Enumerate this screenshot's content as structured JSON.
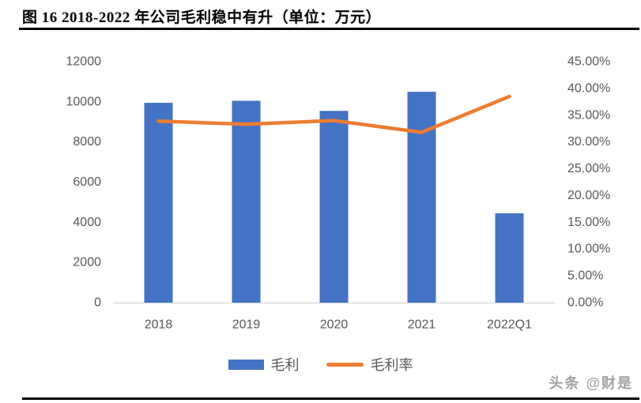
{
  "title": "图 16 2018-2022 年公司毛利稳中有升（单位：万元）",
  "watermark": "头条 @财是",
  "colors": {
    "bar": "#4472C4",
    "line": "#ED7D31",
    "axis_text": "#595959",
    "baseline": "#D9D9D9",
    "title_text": "#000000",
    "rule": "#000000",
    "watermark_text": "#a3a3a3"
  },
  "chart_data": {
    "type": "bar",
    "subtype": "bar+line combo, dual axis",
    "categories": [
      "2018",
      "2019",
      "2020",
      "2021",
      "2022Q1"
    ],
    "series": [
      {
        "name": "毛利",
        "type": "bar",
        "axis": "left",
        "values": [
          9950,
          10050,
          9550,
          10500,
          4450
        ]
      },
      {
        "name": "毛利率",
        "type": "line",
        "axis": "right",
        "values": [
          33.9,
          33.3,
          34.0,
          31.8,
          38.5
        ]
      }
    ],
    "left_axis": {
      "min": 0,
      "max": 12000,
      "step": 2000,
      "ticks": [
        "0",
        "2000",
        "4000",
        "6000",
        "8000",
        "10000",
        "12000"
      ]
    },
    "right_axis": {
      "min": 0,
      "max": 45,
      "step": 5,
      "ticks": [
        "0.00%",
        "5.00%",
        "10.00%",
        "15.00%",
        "20.00%",
        "25.00%",
        "30.00%",
        "35.00%",
        "40.00%",
        "45.00%"
      ]
    },
    "legend": [
      {
        "label": "毛利",
        "color": "#4472C4",
        "shape": "rect"
      },
      {
        "label": "毛利率",
        "color": "#ED7D31",
        "shape": "line"
      }
    ],
    "grid": false,
    "legend_position": "bottom",
    "title": "图 16 2018-2022 年公司毛利稳中有升（单位：万元）"
  }
}
